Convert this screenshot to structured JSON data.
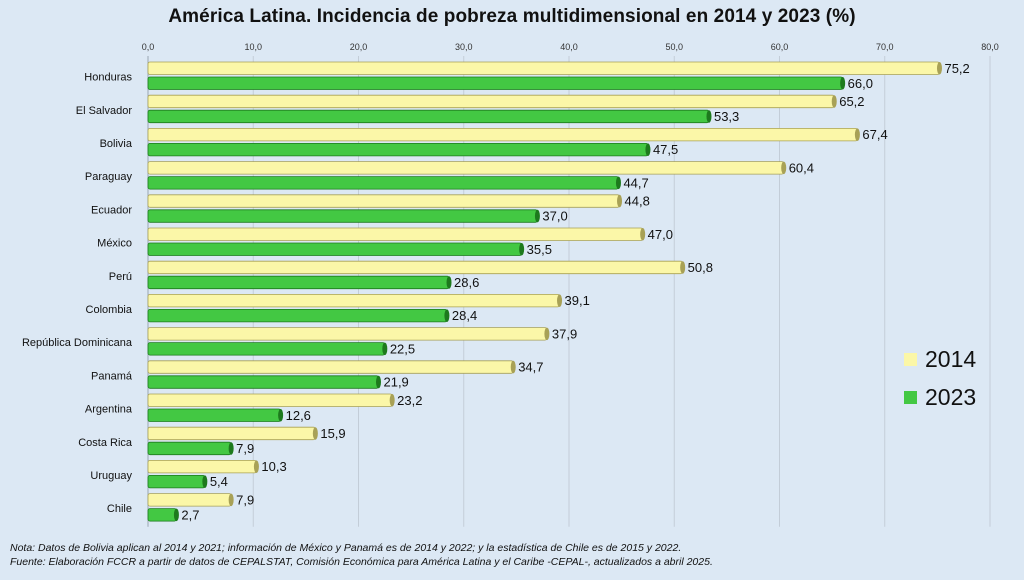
{
  "chart_data": {
    "type": "bar",
    "orientation": "horizontal",
    "title": "América Latina. Incidencia de pobreza multidimensional en 2014 y 2023 (%)",
    "categories": [
      "Honduras",
      "El Salvador",
      "Bolivia",
      "Paraguay",
      "Ecuador",
      "México",
      "Perú",
      "Colombia",
      "República Dominicana",
      "Panamá",
      "Argentina",
      "Costa Rica",
      "Uruguay",
      "Chile"
    ],
    "series": [
      {
        "name": "2014",
        "color": "#fbf7a8",
        "values": [
          75.2,
          65.2,
          67.4,
          60.4,
          44.8,
          47.0,
          50.8,
          39.1,
          37.9,
          34.7,
          23.2,
          15.9,
          10.3,
          7.9
        ]
      },
      {
        "name": "2023",
        "color": "#43c843",
        "values": [
          66.0,
          53.3,
          47.5,
          44.7,
          37.0,
          35.5,
          28.6,
          28.4,
          22.5,
          21.9,
          12.6,
          7.9,
          5.4,
          2.7
        ]
      }
    ],
    "xlim": [
      0,
      80
    ],
    "xticks": [
      "0,0",
      "10,0",
      "20,0",
      "30,0",
      "40,0",
      "50,0",
      "60,0",
      "70,0",
      "80,0"
    ],
    "axis_position": "top",
    "grid": true,
    "legend_position": "right"
  },
  "notes": {
    "nota": "Nota: Datos de Bolivia aplican al 2014 y 2021; información de México y Panamá es de 2014 y 2022; y la estadística de Chile es de 2015 y 2022.",
    "fuente": "Fuente: Elaboración FCCR a partir de datos de CEPALSTAT, Comisión Económica para América Latina y el Caribe -CEPAL-, actualizados a abril 2025."
  }
}
